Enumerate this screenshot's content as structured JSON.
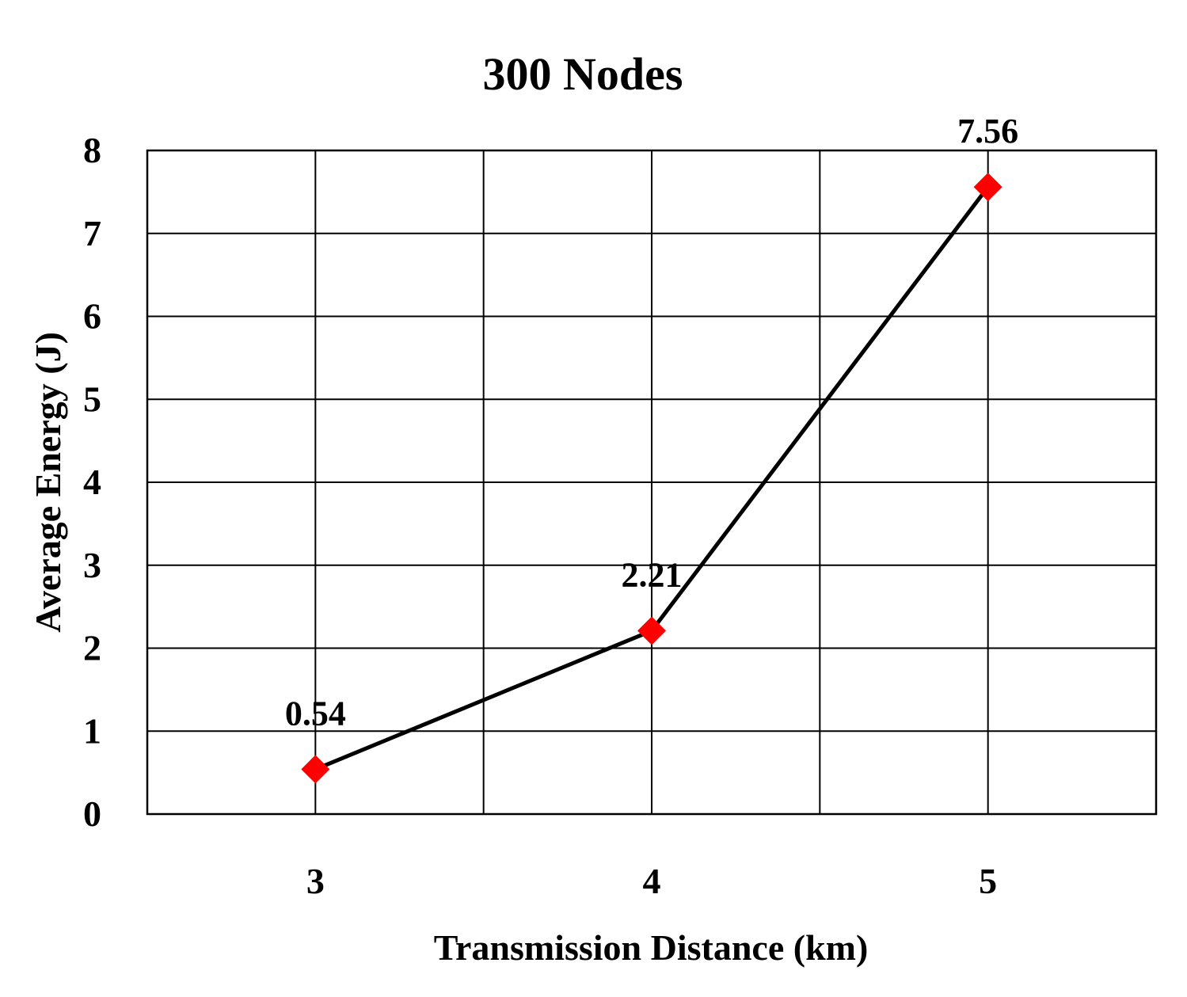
{
  "chart_data": {
    "type": "line",
    "title": "300 Nodes",
    "xlabel": "Transmission Distance (km)",
    "ylabel": "Average Energy (J)",
    "categories": [
      "3",
      "4",
      "5"
    ],
    "series": [
      {
        "values": [
          0.54,
          2.21,
          7.56
        ],
        "data_labels": [
          "0.54",
          "2.21",
          "7.56"
        ],
        "line_color": "#000000",
        "marker_color": "#ff0000",
        "marker": "diamond"
      }
    ],
    "ylim": [
      0,
      8
    ],
    "yticks": [
      "0",
      "1",
      "2",
      "3",
      "4",
      "5",
      "6",
      "7",
      "8"
    ],
    "grid": true
  }
}
